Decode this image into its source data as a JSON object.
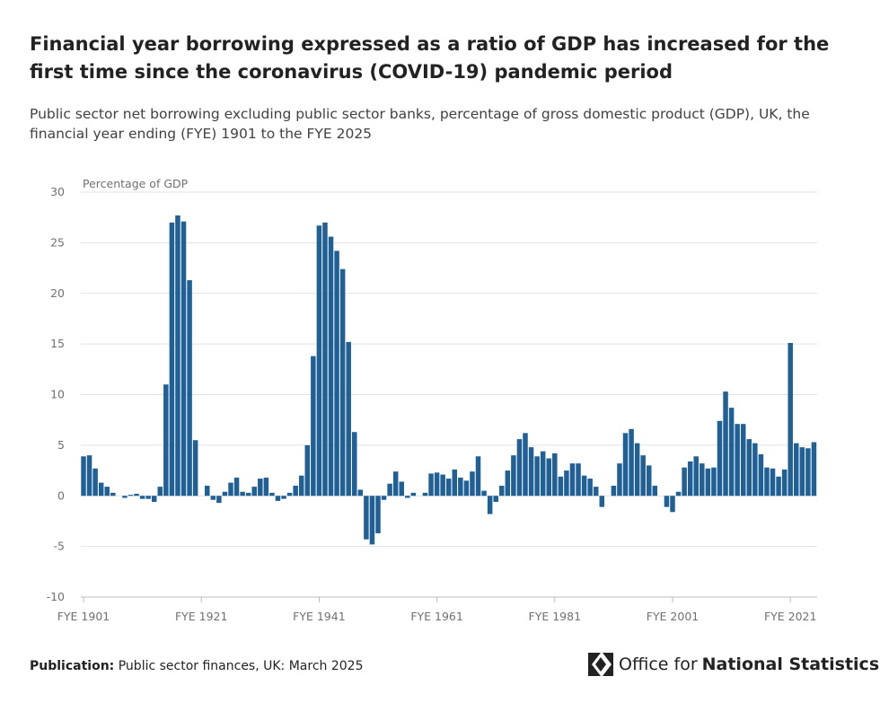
{
  "title": "Financial year borrowing expressed as a ratio of GDP has increased for the first time since the coronavirus (COVID-19) pandemic period",
  "subtitle": "Public sector net borrowing excluding public sector banks, percentage of gross domestic product (GDP), UK, the financial year ending (FYE) 1901 to the FYE 2025",
  "footer": {
    "label": "Publication:",
    "text": "Public sector finances, UK: March 2025"
  },
  "logo": {
    "text_regular": "Office for",
    "text_bold": "National Statistics",
    "icon": "ons-logo-icon"
  },
  "chart_data": {
    "type": "bar",
    "title": "",
    "ylabel": "Percentage of GDP",
    "xlabel": "",
    "ylim": [
      -10,
      30
    ],
    "yticks": [
      -10,
      -5,
      0,
      5,
      10,
      15,
      20,
      25,
      30
    ],
    "xtick_labels": [
      "FYE 1901",
      "FYE 1921",
      "FYE 1941",
      "FYE 1961",
      "FYE 1981",
      "FYE 2001",
      "FYE 2021"
    ],
    "xtick_years": [
      1901,
      1921,
      1941,
      1961,
      1981,
      2001,
      2021
    ],
    "grid": true,
    "color": "#206095",
    "start_year": 1901,
    "values": [
      3.9,
      4.0,
      2.7,
      1.3,
      0.9,
      0.3,
      0,
      -0.2,
      0.1,
      0.2,
      -0.3,
      -0.3,
      -0.6,
      0.9,
      11.0,
      27.0,
      27.7,
      27.1,
      21.3,
      5.5,
      0,
      1.0,
      -0.4,
      -0.7,
      0.4,
      1.3,
      1.8,
      0.4,
      0.3,
      0.9,
      1.7,
      1.8,
      0.3,
      -0.5,
      -0.3,
      0.3,
      1.0,
      2.0,
      5.0,
      13.8,
      26.7,
      27.0,
      25.6,
      24.2,
      22.4,
      15.2,
      6.3,
      0.6,
      -4.3,
      -4.8,
      -3.7,
      -0.4,
      1.2,
      2.4,
      1.4,
      -0.2,
      0.3,
      0,
      0.3,
      2.2,
      2.3,
      2.1,
      1.7,
      2.6,
      1.8,
      1.5,
      2.4,
      3.9,
      0.5,
      -1.8,
      -0.6,
      1.0,
      2.5,
      4.0,
      5.6,
      6.2,
      4.8,
      3.9,
      4.4,
      3.7,
      4.2,
      1.9,
      2.5,
      3.2,
      3.2,
      2.0,
      1.7,
      0.9,
      -1.1,
      0,
      1.0,
      3.2,
      6.2,
      6.6,
      5.2,
      4.0,
      3.0,
      1.0,
      0,
      -1.1,
      -1.6,
      0.4,
      2.8,
      3.4,
      3.9,
      3.2,
      2.7,
      2.8,
      7.4,
      10.3,
      8.7,
      7.1,
      7.1,
      5.6,
      5.2,
      4.1,
      2.8,
      2.7,
      1.9,
      2.6,
      15.1,
      5.2,
      4.8,
      4.7,
      5.3
    ]
  }
}
